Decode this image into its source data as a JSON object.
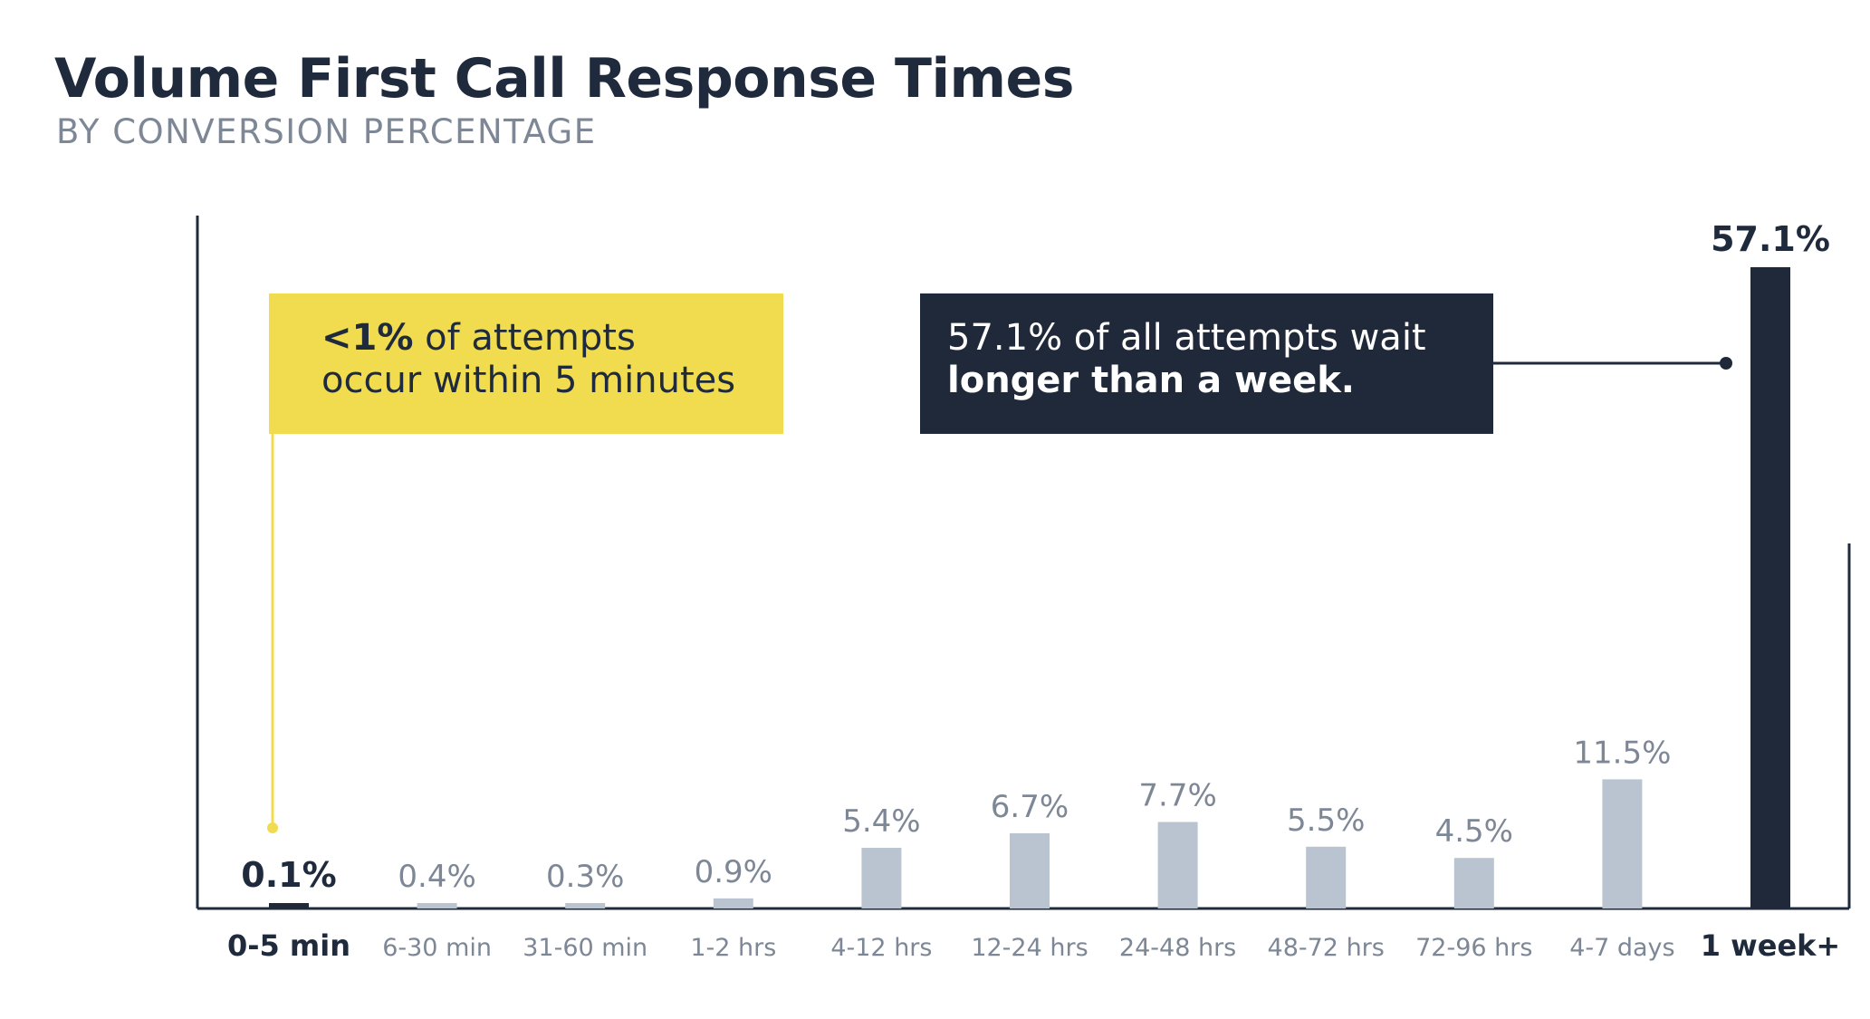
{
  "header": {
    "title": "Volume First Call Response Times",
    "subtitle": "BY CONVERSION PERCENTAGE"
  },
  "callouts": {
    "left": {
      "strong": "<1%",
      "rest": " of attempts",
      "line2": "occur within 5 minutes"
    },
    "right": {
      "line1": "57.1% of all attempts wait",
      "line2": "longer than a week."
    }
  },
  "colors": {
    "bar_default": "#b9c4d0",
    "bar_highlight": "#202939",
    "callout_yellow": "#f0dc4e",
    "callout_dark": "#202939",
    "axis": "#1f2a3c",
    "muted_text": "#7d8796"
  },
  "chart_data": {
    "type": "bar",
    "title": "Volume First Call Response Times",
    "subtitle": "BY CONVERSION PERCENTAGE",
    "xlabel": "",
    "ylabel": "",
    "categories": [
      "0-5 min",
      "6-30 min",
      "31-60 min",
      "1-2 hrs",
      "4-12 hrs",
      "12-24 hrs",
      "24-48 hrs",
      "48-72 hrs",
      "72-96 hrs",
      "4-7 days",
      "1 week+"
    ],
    "values": [
      0.1,
      0.4,
      0.3,
      0.9,
      5.4,
      6.7,
      7.7,
      5.5,
      4.5,
      11.5,
      57.1
    ],
    "data_labels": [
      "0.1%",
      "0.4%",
      "0.3%",
      "0.9%",
      "5.4%",
      "6.7%",
      "7.7%",
      "5.5%",
      "4.5%",
      "11.5%",
      "57.1%"
    ],
    "highlighted": [
      "0-5 min",
      "1 week+"
    ],
    "ylim": [
      0,
      57.1
    ],
    "grid": false,
    "legend": "none"
  }
}
